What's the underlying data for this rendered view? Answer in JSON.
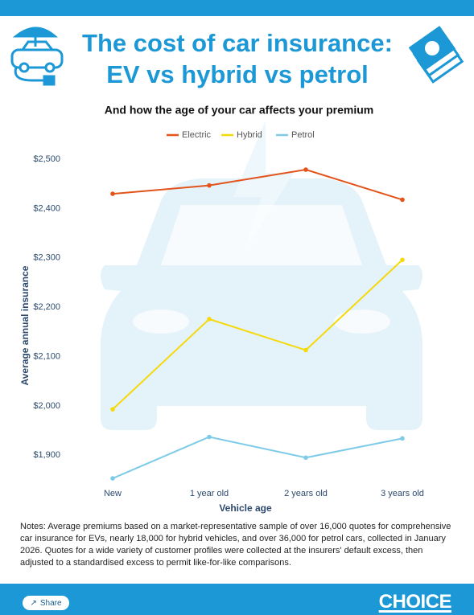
{
  "chart_data": {
    "type": "line",
    "title": [
      "The cost of car insurance:",
      "EV vs hybrid vs petrol"
    ],
    "subtitle": "And how the age of your car affects your premium",
    "x_label": "Vehicle age",
    "y_label": "Average annual insurance",
    "categories": [
      "New",
      "1 year old",
      "2 years old",
      "3 years old"
    ],
    "series": [
      {
        "name": "Electric",
        "color": "#e2541c",
        "values": [
          2430,
          2447,
          2479,
          2418
        ]
      },
      {
        "name": "Hybrid",
        "color": "#f5d90a",
        "values": [
          1993,
          2176,
          2113,
          2296
        ]
      },
      {
        "name": "Petrol",
        "color": "#7ecbe8",
        "values": [
          1853,
          1937,
          1895,
          1934
        ]
      }
    ],
    "ylim": [
      1840,
      2510
    ],
    "yticks": [
      {
        "value": 1900,
        "label": "$1,900"
      },
      {
        "value": 2000,
        "label": "$2,000"
      },
      {
        "value": 2100,
        "label": "$2,100"
      },
      {
        "value": 2200,
        "label": "$2,200"
      },
      {
        "value": 2300,
        "label": "$2,300"
      },
      {
        "value": 2400,
        "label": "$2,400"
      },
      {
        "value": 2500,
        "label": "$2,500"
      }
    ],
    "grid": false,
    "legend": "top"
  },
  "notes": "Notes: Average premiums based on a market-representative sample of over 16,000 quotes for comprehensive car insurance for EVs, nearly 18,000 for hybrid vehicles, and over 36,000 for petrol cars, collected in January 2026. Quotes for a wide variety of customer profiles were collected at the insurers' default excess, then adjusted to a standardised excess to permit like-for-like comparisons.",
  "footer": {
    "share": "Share",
    "logo": "CHOICE"
  }
}
